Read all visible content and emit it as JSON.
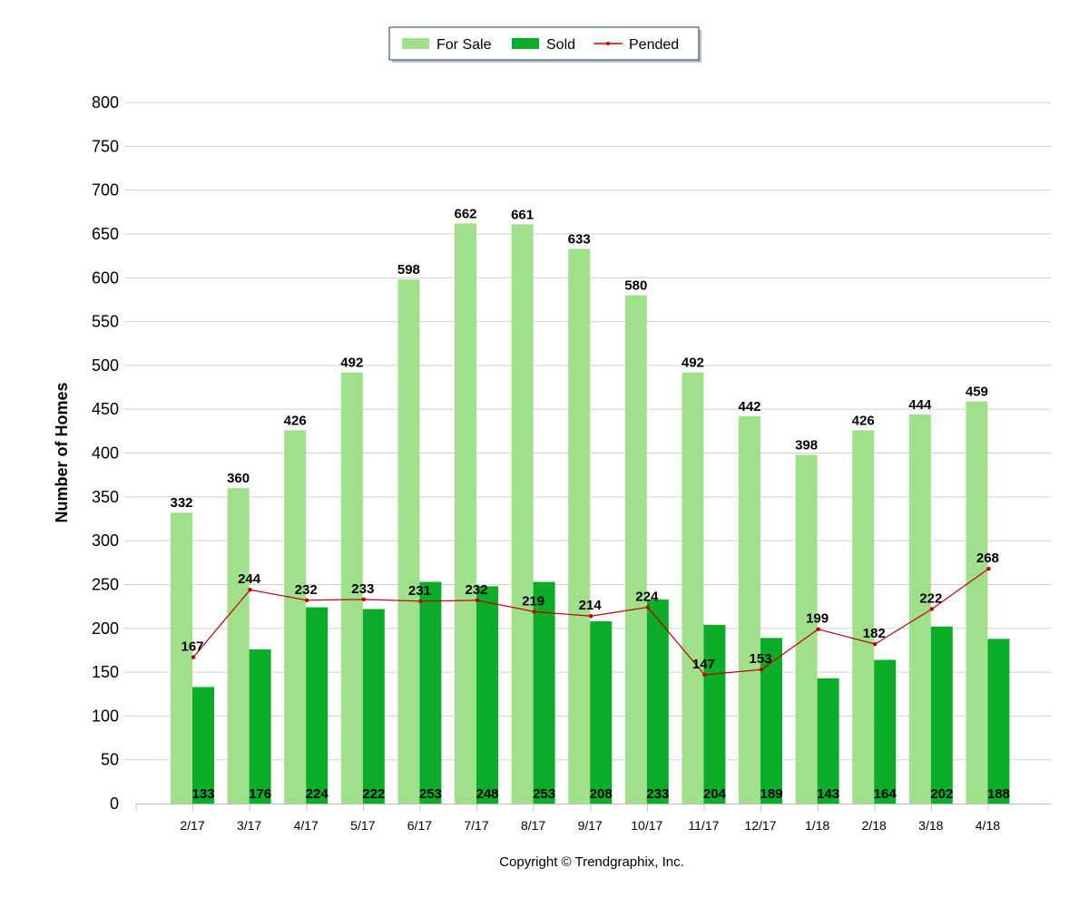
{
  "chart_data": {
    "type": "bar",
    "categories": [
      "2/17",
      "3/17",
      "4/17",
      "5/17",
      "6/17",
      "7/17",
      "8/17",
      "9/17",
      "10/17",
      "11/17",
      "12/17",
      "1/18",
      "2/18",
      "3/18",
      "4/18"
    ],
    "series": [
      {
        "name": "For Sale",
        "type": "bar",
        "color": "#a0e08a",
        "values": [
          332,
          360,
          426,
          492,
          598,
          662,
          661,
          633,
          580,
          492,
          442,
          398,
          426,
          444,
          459
        ]
      },
      {
        "name": "Sold",
        "type": "bar",
        "color": "#0aad28",
        "values": [
          133,
          176,
          224,
          222,
          253,
          248,
          253,
          208,
          233,
          204,
          189,
          143,
          164,
          202,
          188
        ]
      },
      {
        "name": "Pended",
        "type": "line",
        "color": "#c00000",
        "values": [
          167,
          244,
          232,
          233,
          231,
          232,
          219,
          214,
          224,
          147,
          153,
          199,
          182,
          222,
          268
        ]
      }
    ],
    "title": "",
    "xlabel": "",
    "ylabel": "Number of Homes",
    "ylim": [
      0,
      800
    ],
    "yticks": [
      0,
      50,
      100,
      150,
      200,
      250,
      300,
      350,
      400,
      450,
      500,
      550,
      600,
      650,
      700,
      750,
      800
    ],
    "grid": true,
    "legend_position": "top-center"
  },
  "footer": "Copyright © Trendgraphix, Inc."
}
